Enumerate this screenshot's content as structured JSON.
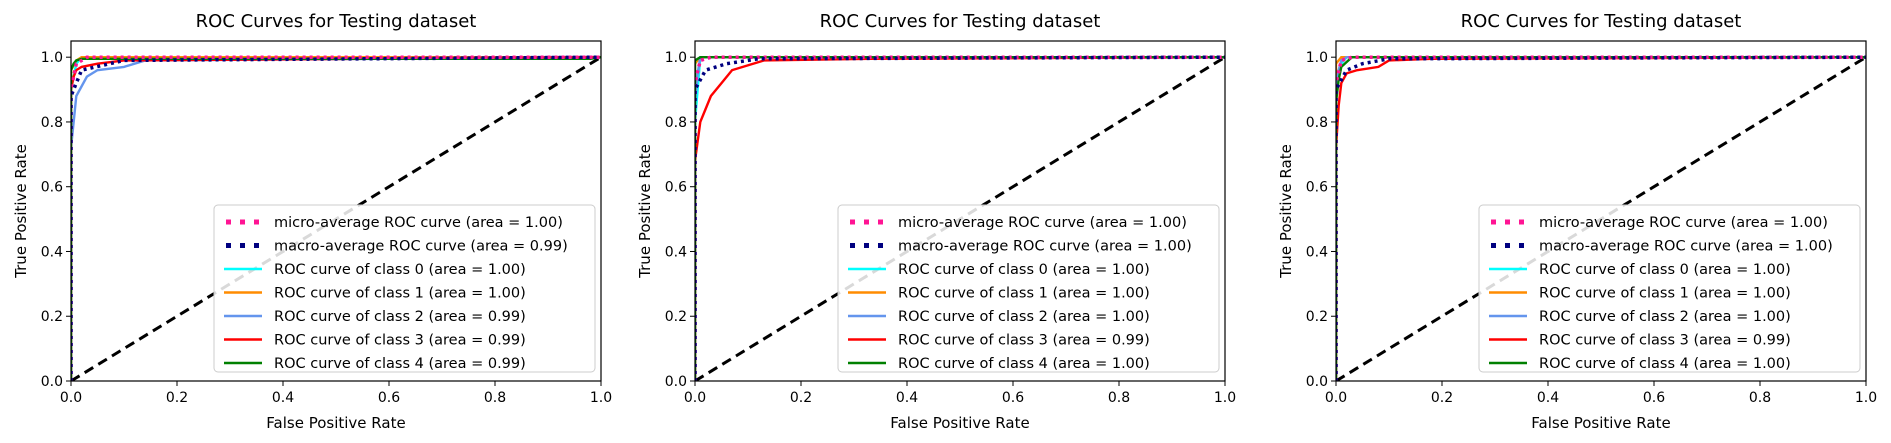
{
  "chart_data": [
    {
      "type": "line",
      "title": "ROC Curves for Testing dataset",
      "xlabel": "False Positive Rate",
      "ylabel": "True Positive Rate",
      "xlim": [
        0.0,
        1.0
      ],
      "ylim": [
        0.0,
        1.05
      ],
      "xticks": [
        "0.0",
        "0.2",
        "0.4",
        "0.6",
        "0.8",
        "1.0"
      ],
      "yticks": [
        "0.0",
        "0.2",
        "0.4",
        "0.6",
        "0.8",
        "1.0"
      ],
      "legend_position": "lower-right",
      "series": [
        {
          "name": "micro-average ROC curve (area = 1.00)",
          "color": "#ff1493",
          "style": "dotted",
          "x": [
            0,
            0,
            0.01,
            0.03,
            1.0
          ],
          "y": [
            0,
            0.9,
            0.98,
            1.0,
            1.0
          ]
        },
        {
          "name": "macro-average ROC curve (area = 0.99)",
          "color": "#000080",
          "style": "dotted",
          "x": [
            0,
            0,
            0.02,
            0.1,
            1.0
          ],
          "y": [
            0,
            0.88,
            0.96,
            0.99,
            1.0
          ]
        },
        {
          "name": "ROC curve of class 0 (area = 1.00)",
          "color": "#00ffff",
          "style": "solid",
          "x": [
            0,
            0,
            0.01,
            0.02,
            1.0
          ],
          "y": [
            0,
            0.9,
            0.98,
            1.0,
            1.0
          ]
        },
        {
          "name": "ROC curve of class 1 (area = 1.00)",
          "color": "#ff8c00",
          "style": "solid",
          "x": [
            0,
            0,
            0.01,
            0.02,
            1.0
          ],
          "y": [
            0,
            0.96,
            0.99,
            1.0,
            1.0
          ]
        },
        {
          "name": "ROC curve of class 2 (area = 0.99)",
          "color": "#6495ed",
          "style": "solid",
          "x": [
            0,
            0,
            0.005,
            0.01,
            0.03,
            0.05,
            0.1,
            0.14,
            1.0
          ],
          "y": [
            0,
            0.72,
            0.8,
            0.88,
            0.94,
            0.96,
            0.97,
            0.99,
            1.0
          ]
        },
        {
          "name": "ROC curve of class 3 (area = 0.99)",
          "color": "#ff0000",
          "style": "solid",
          "x": [
            0,
            0,
            0.005,
            0.01,
            0.02,
            0.05,
            0.1,
            1.0
          ],
          "y": [
            0,
            0.9,
            0.94,
            0.96,
            0.97,
            0.98,
            0.99,
            1.0
          ]
        },
        {
          "name": "ROC curve of class 4 (area = 0.99)",
          "color": "#008000",
          "style": "solid",
          "x": [
            0,
            0,
            0.005,
            0.01,
            0.02,
            0.98,
            1.0
          ],
          "y": [
            0,
            0.96,
            0.98,
            0.99,
            0.995,
            0.995,
            1.0
          ]
        }
      ]
    },
    {
      "type": "line",
      "title": "ROC Curves for Testing dataset",
      "xlabel": "False Positive Rate",
      "ylabel": "True Positive Rate",
      "xlim": [
        0.0,
        1.0
      ],
      "ylim": [
        0.0,
        1.05
      ],
      "xticks": [
        "0.0",
        "0.2",
        "0.4",
        "0.6",
        "0.8",
        "1.0"
      ],
      "yticks": [
        "0.0",
        "0.2",
        "0.4",
        "0.6",
        "0.8",
        "1.0"
      ],
      "legend_position": "lower-right",
      "series": [
        {
          "name": "micro-average ROC curve (area = 1.00)",
          "color": "#ff1493",
          "style": "dotted",
          "x": [
            0,
            0,
            0.01,
            0.03,
            1.0
          ],
          "y": [
            0,
            0.92,
            0.99,
            1.0,
            1.0
          ]
        },
        {
          "name": "macro-average ROC curve (area = 1.00)",
          "color": "#000080",
          "style": "dotted",
          "x": [
            0,
            0,
            0.02,
            0.06,
            0.12,
            1.0
          ],
          "y": [
            0,
            0.9,
            0.96,
            0.98,
            0.995,
            1.0
          ]
        },
        {
          "name": "ROC curve of class 0 (area = 1.00)",
          "color": "#00ffff",
          "style": "solid",
          "x": [
            0,
            0,
            0.005,
            0.01,
            1.0
          ],
          "y": [
            0,
            0.8,
            0.9,
            1.0,
            1.0
          ]
        },
        {
          "name": "ROC curve of class 1 (area = 1.00)",
          "color": "#ff8c00",
          "style": "solid",
          "x": [
            0,
            0,
            0.01,
            1.0
          ],
          "y": [
            0,
            0.98,
            1.0,
            1.0
          ]
        },
        {
          "name": "ROC curve of class 2 (area = 1.00)",
          "color": "#6495ed",
          "style": "solid",
          "x": [
            0,
            0,
            0.005,
            0.01,
            1.0
          ],
          "y": [
            0,
            0.86,
            0.95,
            1.0,
            1.0
          ]
        },
        {
          "name": "ROC curve of class 3 (area = 0.99)",
          "color": "#ff0000",
          "style": "solid",
          "x": [
            0,
            0,
            0.005,
            0.01,
            0.02,
            0.03,
            0.05,
            0.07,
            0.13,
            0.33,
            1.0
          ],
          "y": [
            0,
            0.68,
            0.74,
            0.8,
            0.84,
            0.88,
            0.92,
            0.96,
            0.99,
            0.995,
            1.0
          ]
        },
        {
          "name": "ROC curve of class 4 (area = 1.00)",
          "color": "#008000",
          "style": "solid",
          "x": [
            0,
            0,
            0.01,
            1.0
          ],
          "y": [
            0,
            0.99,
            1.0,
            1.0
          ]
        }
      ]
    },
    {
      "type": "line",
      "title": "ROC Curves for Testing dataset",
      "xlabel": "False Positive Rate",
      "ylabel": "True Positive Rate",
      "xlim": [
        0.0,
        1.0
      ],
      "ylim": [
        0.0,
        1.05
      ],
      "xticks": [
        "0.0",
        "0.2",
        "0.4",
        "0.6",
        "0.8",
        "1.0"
      ],
      "yticks": [
        "0.0",
        "0.2",
        "0.4",
        "0.6",
        "0.8",
        "1.0"
      ],
      "legend_position": "lower-right",
      "series": [
        {
          "name": "micro-average ROC curve (area = 1.00)",
          "color": "#ff1493",
          "style": "dotted",
          "x": [
            0,
            0,
            0.01,
            0.03,
            1.0
          ],
          "y": [
            0,
            0.92,
            0.99,
            1.0,
            1.0
          ]
        },
        {
          "name": "macro-average ROC curve (area = 1.00)",
          "color": "#000080",
          "style": "dotted",
          "x": [
            0,
            0,
            0.02,
            0.05,
            0.1,
            1.0
          ],
          "y": [
            0,
            0.9,
            0.96,
            0.98,
            0.995,
            1.0
          ]
        },
        {
          "name": "ROC curve of class 0 (area = 1.00)",
          "color": "#00ffff",
          "style": "solid",
          "x": [
            0,
            0,
            0.005,
            0.01,
            0.02,
            1.0
          ],
          "y": [
            0,
            0.88,
            0.95,
            0.98,
            1.0,
            1.0
          ]
        },
        {
          "name": "ROC curve of class 1 (area = 1.00)",
          "color": "#ff8c00",
          "style": "solid",
          "x": [
            0,
            0,
            0.01,
            1.0
          ],
          "y": [
            0,
            0.98,
            1.0,
            1.0
          ]
        },
        {
          "name": "ROC curve of class 2 (area = 1.00)",
          "color": "#6495ed",
          "style": "solid",
          "x": [
            0,
            0,
            0.005,
            0.01,
            0.02,
            1.0
          ],
          "y": [
            0,
            0.9,
            0.96,
            0.99,
            1.0,
            1.0
          ]
        },
        {
          "name": "ROC curve of class 3 (area = 0.99)",
          "color": "#ff0000",
          "style": "solid",
          "x": [
            0,
            0,
            0.005,
            0.01,
            0.02,
            0.04,
            0.08,
            0.1,
            0.18,
            1.0
          ],
          "y": [
            0,
            0.72,
            0.85,
            0.92,
            0.95,
            0.96,
            0.97,
            0.99,
            0.995,
            1.0
          ]
        },
        {
          "name": "ROC curve of class 4 (area = 1.00)",
          "color": "#008000",
          "style": "solid",
          "x": [
            0,
            0,
            0.005,
            0.01,
            0.03,
            1.0
          ],
          "y": [
            0,
            0.86,
            0.93,
            0.97,
            1.0,
            1.0
          ]
        }
      ]
    }
  ]
}
